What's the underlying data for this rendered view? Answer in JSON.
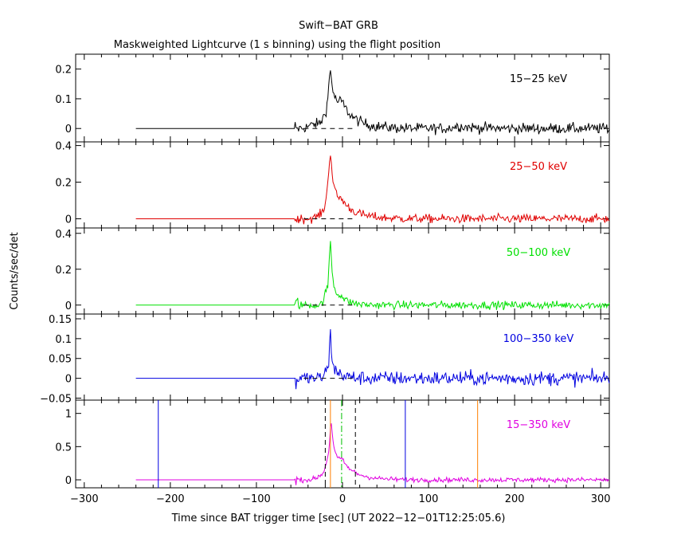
{
  "chart_data": {
    "type": "line",
    "title": "Swift−BAT GRB",
    "subtitle": "Maskweighted Lightcurve (1 s binning) using the flight position",
    "xlabel": "Time since BAT trigger time [sec] (UT 2022−12−01T12:25:05.6)",
    "ylabel": "Counts/sec/det",
    "xlim": [
      -310,
      310
    ],
    "xticks": [
      -300,
      -200,
      -100,
      0,
      100,
      200,
      300
    ],
    "xtick_labels": [
      "−300",
      "−200",
      "−100",
      "0",
      "100",
      "200",
      "300"
    ],
    "data_start": -240,
    "data_end": 310,
    "active_start": -55,
    "grid": false,
    "panels": [
      {
        "name": "15−25 keV",
        "color": "#000000",
        "ylim": [
          -0.045,
          0.25
        ],
        "yticks": [
          0,
          0.1,
          0.2
        ],
        "ytick_labels": [
          "0",
          "0.1",
          "0.2"
        ],
        "noise": 0.009,
        "pulses": [
          {
            "t": -30,
            "amp": 0.015,
            "rise": 8,
            "decay": 20
          },
          {
            "t": -18,
            "amp": 0.05,
            "rise": 4,
            "decay": 12
          },
          {
            "t": -14,
            "amp": 0.15,
            "rise": 2,
            "decay": 6
          },
          {
            "t": 0,
            "amp": 0.06,
            "rise": 5,
            "decay": 18
          },
          {
            "t": 135,
            "amp": 0.008,
            "rise": 6,
            "decay": 20
          }
        ],
        "dashed_zero": [
          -45,
          15
        ]
      },
      {
        "name": "25−50 keV",
        "color": "#e00000",
        "ylim": [
          -0.05,
          0.42
        ],
        "yticks": [
          0,
          0.2,
          0.4
        ],
        "ytick_labels": [
          "0",
          "0.2",
          "0.4"
        ],
        "noise": 0.012,
        "pulses": [
          {
            "t": -22,
            "amp": 0.03,
            "rise": 6,
            "decay": 15
          },
          {
            "t": -16,
            "amp": 0.15,
            "rise": 3,
            "decay": 10
          },
          {
            "t": -14,
            "amp": 0.22,
            "rise": 1.5,
            "decay": 4
          },
          {
            "t": 0,
            "amp": 0.06,
            "rise": 5,
            "decay": 20
          }
        ],
        "dashed_zero": [
          -45,
          15
        ]
      },
      {
        "name": "50−100 keV",
        "color": "#00e000",
        "ylim": [
          -0.05,
          0.43
        ],
        "yticks": [
          0,
          0.2,
          0.4
        ],
        "ytick_labels": [
          "0",
          "0.2",
          "0.4"
        ],
        "noise": 0.011,
        "pulses": [
          {
            "t": -18,
            "amp": 0.08,
            "rise": 3,
            "decay": 8
          },
          {
            "t": -14,
            "amp": 0.3,
            "rise": 1.5,
            "decay": 3
          },
          {
            "t": -2,
            "amp": 0.04,
            "rise": 4,
            "decay": 10
          }
        ],
        "dashed_zero": [
          -45,
          15
        ]
      },
      {
        "name": "100−350 keV",
        "color": "#0000e0",
        "ylim": [
          -0.055,
          0.162
        ],
        "yticks": [
          -0.05,
          0,
          0.05,
          0.1,
          0.15
        ],
        "ytick_labels": [
          "−0.05",
          "0",
          "0.05",
          "0.1",
          "0.15"
        ],
        "noise": 0.009,
        "pulses": [
          {
            "t": -18,
            "amp": 0.02,
            "rise": 3,
            "decay": 6
          },
          {
            "t": -14,
            "amp": 0.1,
            "rise": 1.2,
            "decay": 2.5
          },
          {
            "t": -4,
            "amp": 0.01,
            "rise": 4,
            "decay": 10
          }
        ],
        "dashed_zero": [
          -45,
          15
        ]
      },
      {
        "name": "15−350 keV",
        "color": "#e000e0",
        "ylim": [
          -0.12,
          1.2
        ],
        "yticks": [
          0,
          0.5,
          1
        ],
        "ytick_labels": [
          "0",
          "0.5",
          "1"
        ],
        "noise": 0.018,
        "pulses": [
          {
            "t": -22,
            "amp": 0.08,
            "rise": 6,
            "decay": 15
          },
          {
            "t": -16,
            "amp": 0.3,
            "rise": 3,
            "decay": 10
          },
          {
            "t": -13,
            "amp": 0.6,
            "rise": 1.5,
            "decay": 4
          },
          {
            "t": 0,
            "amp": 0.2,
            "rise": 5,
            "decay": 18
          }
        ],
        "markers": [
          {
            "t": -214,
            "color": "#0000e0",
            "style": "solid"
          },
          {
            "t": -20,
            "color": "#000000",
            "style": "dashed"
          },
          {
            "t": -14,
            "color": "#ff7f00",
            "style": "solid"
          },
          {
            "t": -1,
            "color": "#00c000",
            "style": "dashdot"
          },
          {
            "t": 15,
            "color": "#000000",
            "style": "dashed"
          },
          {
            "t": 73,
            "color": "#0000e0",
            "style": "solid"
          },
          {
            "t": 157,
            "color": "#ff7f00",
            "style": "solid"
          }
        ]
      }
    ]
  }
}
